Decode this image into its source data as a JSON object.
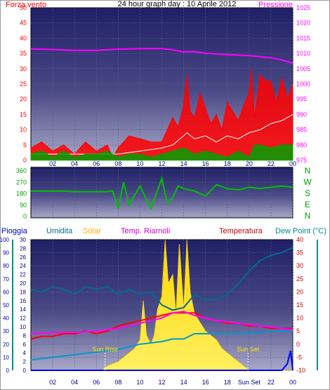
{
  "header": {
    "title": "24 hour graph day : 10 Aprile 2012",
    "left_label": "Forza vento",
    "right_label": "Pressione"
  },
  "colors": {
    "wind": "#ff0000",
    "gust": "#ffffff",
    "wind_avg": "#00a000",
    "pressure": "#ff00ff",
    "direction": "#00c000",
    "rain": "#0000ff",
    "humidity": "#006b8f",
    "solar": "#ffe000",
    "temp_inside": "#ff00ff",
    "temperature": "#ff0000",
    "dew_point": "#0099cc",
    "axis_green": "#00a000",
    "axis_teal": "#008b8b"
  },
  "chart_data": [
    {
      "type": "line",
      "name": "wind-pressure",
      "x_ticks": [
        "02",
        "04",
        "06",
        "08",
        "10",
        "12",
        "14",
        "16",
        "18",
        "20",
        "22",
        "00"
      ],
      "y_left": {
        "label": "Forza vento",
        "range": [
          0,
          50
        ],
        "ticks": [
          0,
          5,
          10,
          15,
          20,
          25,
          30,
          35,
          40,
          45,
          50
        ]
      },
      "y_right": {
        "label": "Pressione",
        "range": [
          975,
          1025
        ],
        "ticks": [
          975,
          980,
          985,
          990,
          995,
          1000,
          1005,
          1010,
          1015,
          1020,
          1025
        ]
      },
      "series": [
        {
          "key": "pressure",
          "axis": "right",
          "x": [
            0,
            2,
            4,
            6,
            8,
            10,
            12,
            13,
            14,
            15,
            16,
            18,
            20,
            22,
            23,
            24
          ],
          "y": [
            1011.5,
            1011.3,
            1011.0,
            1011.0,
            1011.4,
            1011.6,
            1011.6,
            1011.2,
            1010.5,
            1010.6,
            1010.1,
            1009.6,
            1009.3,
            1008.6,
            1007.9,
            1006.8
          ]
        },
        {
          "key": "wind",
          "axis": "left",
          "x": [
            0,
            1,
            2,
            3,
            4,
            5,
            6,
            7,
            7.5,
            8,
            9,
            10,
            11,
            12,
            12.5,
            13,
            13.5,
            14,
            14.3,
            14.6,
            15,
            15.5,
            16,
            16.5,
            17,
            17.5,
            18,
            18.5,
            19,
            19.5,
            20,
            20.2,
            20.5,
            21,
            21.5,
            22,
            22.5,
            23,
            23.5,
            24
          ],
          "y": [
            4,
            6,
            3,
            5,
            2,
            6,
            3,
            5,
            1,
            4,
            8,
            7,
            6,
            6,
            10,
            14,
            11,
            18,
            28,
            16,
            14,
            22,
            17,
            12,
            15,
            10,
            19,
            16,
            13,
            18,
            22,
            30,
            14,
            28,
            26,
            26,
            19,
            27,
            20,
            25
          ]
        },
        {
          "key": "gust",
          "axis": "left",
          "x": [
            0,
            2,
            4,
            6,
            8,
            10,
            12,
            13,
            14,
            14.3,
            15,
            16,
            17,
            18,
            19,
            20,
            21,
            22,
            23,
            24
          ],
          "y": [
            2,
            2,
            2,
            2,
            2,
            3,
            4,
            5,
            8,
            9,
            7,
            8,
            6,
            8,
            7,
            9,
            10,
            12,
            13,
            15
          ]
        },
        {
          "key": "wind_avg",
          "axis": "left",
          "x": [
            0,
            1,
            2,
            3,
            4,
            5,
            6,
            7,
            8,
            9,
            10,
            11,
            12,
            13,
            14,
            15,
            16,
            17,
            18,
            19,
            20,
            20.5,
            21,
            22,
            23,
            24
          ],
          "y": [
            2,
            3,
            1,
            3,
            1,
            2,
            2,
            3,
            1,
            2,
            2,
            1,
            2,
            3,
            4,
            2,
            3,
            2,
            1,
            3,
            1,
            5,
            5,
            4,
            5,
            5
          ]
        }
      ]
    },
    {
      "type": "line",
      "name": "wind-direction",
      "y_left": {
        "range": [
          0,
          360
        ],
        "ticks": [
          0,
          90,
          180,
          270,
          360
        ]
      },
      "y_right": {
        "labels": [
          "N",
          "W",
          "S",
          "E",
          "N"
        ]
      },
      "series": [
        {
          "key": "direction",
          "x": [
            0,
            1,
            2,
            3,
            4,
            5,
            6,
            7,
            7.5,
            8,
            8.5,
            9,
            10,
            11,
            12,
            12.5,
            13,
            13.5,
            14,
            15,
            16,
            17,
            18,
            19,
            20,
            21,
            22,
            23,
            24
          ],
          "y": [
            200,
            200,
            200,
            200,
            195,
            195,
            195,
            195,
            200,
            60,
            270,
            90,
            240,
            60,
            300,
            100,
            150,
            240,
            220,
            200,
            160,
            250,
            220,
            210,
            230,
            220,
            230,
            240,
            230
          ]
        }
      ]
    },
    {
      "type": "area",
      "name": "weather",
      "labels": {
        "rain": "Pioggia",
        "humidity": "Umidita",
        "solar": "Solar",
        "temp_inside": "Temp. Riarnoli",
        "temperature": "Temperatura",
        "dew_point": "Dew Point (°C)"
      },
      "x_ticks": [
        "02",
        "04",
        "06",
        "08",
        "10",
        "12",
        "14",
        "16",
        "18",
        "Sun Set",
        "22",
        "00"
      ],
      "y_rain": {
        "range": [
          0,
          100
        ],
        "ticks": [
          0,
          10,
          20,
          30,
          40,
          50,
          60,
          70,
          80,
          90,
          100
        ]
      },
      "y_solar": {
        "range": [
          0,
          30
        ],
        "ticks": [
          0,
          2,
          4,
          6,
          8,
          10,
          12,
          14,
          16,
          18,
          20,
          22,
          24,
          26,
          28,
          30
        ]
      },
      "y_temp": {
        "range": [
          -10,
          40
        ],
        "ticks": [
          -10,
          -5,
          0,
          5,
          10,
          15,
          20,
          25,
          30,
          35,
          40
        ]
      },
      "annotations": [
        {
          "text": "Sun Rise",
          "x": 6.8
        },
        {
          "text": "Sun Set",
          "x": 19.9
        }
      ],
      "series": [
        {
          "key": "rain",
          "axis": "rain",
          "x": [
            0,
            22,
            23,
            23.5,
            23.8,
            24
          ],
          "y": [
            0,
            0,
            0,
            5,
            15,
            0
          ]
        },
        {
          "key": "humidity",
          "axis": "temp",
          "x": [
            0,
            1,
            2,
            3,
            4,
            5,
            6,
            7,
            8,
            9,
            10,
            11,
            12,
            13,
            14,
            15,
            16,
            17,
            18,
            19,
            20,
            21,
            22,
            23,
            24
          ],
          "y": [
            21,
            20,
            22,
            21,
            19,
            22,
            21,
            22,
            19,
            21,
            19,
            20,
            15,
            13,
            14,
            19,
            17,
            17,
            19,
            23,
            28,
            32,
            34,
            35,
            37
          ]
        },
        {
          "key": "solar",
          "axis": "solar",
          "x": [
            0,
            6.5,
            7,
            7.5,
            8,
            8.5,
            9,
            9.5,
            10,
            10.3,
            10.6,
            11,
            11.3,
            11.6,
            12,
            12.3,
            12.6,
            13,
            13.3,
            13.6,
            14,
            14.3,
            14.6,
            15,
            15.5,
            16,
            16.5,
            17,
            17.5,
            18,
            18.5,
            19,
            19.5,
            20,
            24
          ],
          "y": [
            0,
            0,
            1,
            1.5,
            2,
            3,
            4,
            5,
            7,
            16,
            8,
            6,
            8,
            14,
            17,
            30,
            20,
            22,
            13,
            29,
            14,
            30,
            18,
            13,
            11,
            9,
            8,
            7,
            5,
            4,
            3,
            2,
            1,
            0,
            0
          ]
        },
        {
          "key": "temp_inside",
          "axis": "temp",
          "x": [
            0,
            2,
            4,
            6,
            7,
            8,
            9,
            10,
            11,
            12,
            13,
            14,
            15,
            16,
            17,
            18,
            19,
            20,
            21,
            22,
            23,
            24
          ],
          "y": [
            4,
            4.5,
            4.5,
            5,
            5.5,
            6,
            7,
            8,
            9,
            10,
            12,
            12.5,
            11,
            10,
            9,
            8.5,
            8,
            7.5,
            7,
            6.5,
            6,
            5.5
          ]
        },
        {
          "key": "temperature",
          "axis": "temp",
          "x": [
            0,
            1,
            2,
            3,
            4,
            5,
            6,
            7,
            8,
            9,
            10,
            11,
            12,
            13,
            14,
            15,
            16,
            17,
            18,
            19,
            20,
            21,
            22,
            23,
            24
          ],
          "y": [
            2,
            3,
            3,
            4,
            4,
            5,
            4,
            5,
            7,
            8,
            9,
            10,
            11,
            12,
            12,
            12,
            10,
            9,
            8,
            8,
            7,
            7,
            6,
            6,
            6
          ]
        },
        {
          "key": "dew_point",
          "axis": "temp",
          "x": [
            0,
            2,
            4,
            6,
            8,
            10,
            12,
            13,
            14,
            15,
            16,
            18,
            20,
            22,
            24
          ],
          "y": [
            -6,
            -5,
            -4,
            -3,
            -2,
            0,
            1,
            2,
            2,
            4,
            4,
            4,
            4,
            5,
            5
          ]
        }
      ]
    }
  ]
}
